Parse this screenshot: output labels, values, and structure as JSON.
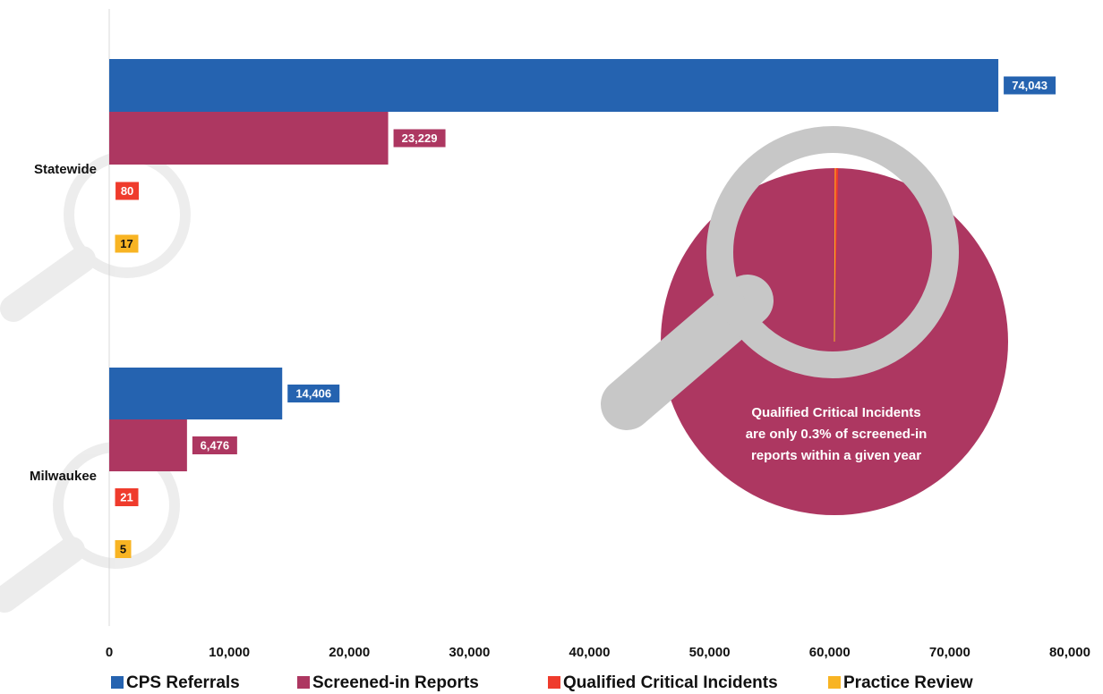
{
  "chart_data": {
    "type": "bar",
    "orientation": "horizontal",
    "title": "",
    "xlabel": "",
    "ylabel": "",
    "xlim": [
      0,
      80000
    ],
    "x_ticks": [
      "0",
      "10,000",
      "20,000",
      "30,000",
      "40,000",
      "50,000",
      "60,000",
      "70,000",
      "80,000"
    ],
    "grid": false,
    "legend_position": "bottom",
    "categories": [
      "Statewide",
      "Milwaukee"
    ],
    "series": [
      {
        "name": "CPS Referrals",
        "color": "#2563b0",
        "values": [
          74043,
          14406
        ],
        "labels": [
          "74,043",
          "14,406"
        ]
      },
      {
        "name": "Screened-in Reports",
        "color": "#ad3761",
        "values": [
          23229,
          6476
        ],
        "labels": [
          "23,229",
          "6,476"
        ]
      },
      {
        "name": "Qualified Critical Incidents",
        "color": "#ef3b2c",
        "values": [
          80,
          21
        ],
        "labels": [
          "80",
          "21"
        ]
      },
      {
        "name": "Practice Review",
        "color": "#f8b423",
        "values": [
          17,
          5
        ],
        "labels": [
          "17",
          "5"
        ]
      }
    ],
    "annotation": {
      "lines": [
        "Qualified Critical Incidents",
        "are only 0.3% of screened-in",
        "reports within a given year"
      ],
      "pie_fill": "#ad3761",
      "slice_color": "#ef3b2c",
      "slice_fraction": 0.0034,
      "magnifier_color": "#c7c7c7"
    }
  }
}
